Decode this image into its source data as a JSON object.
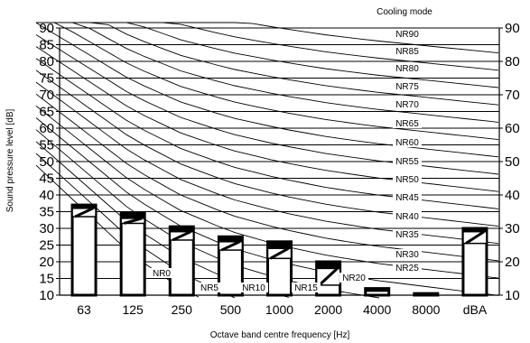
{
  "chart_data": {
    "type": "bar",
    "title": "Cooling mode",
    "xlabel": "Octave band centre frequency [Hz]",
    "ylabel": "Sound pressure level [dB]",
    "ylim": [
      10,
      90
    ],
    "yticks": [
      "10",
      "15",
      "20",
      "25",
      "30",
      "35",
      "40",
      "45",
      "50",
      "55",
      "60",
      "65",
      "70",
      "75",
      "80",
      "85",
      "90"
    ],
    "yticks_right": [
      "10",
      "20",
      "30",
      "40",
      "50",
      "60",
      "70",
      "80",
      "90"
    ],
    "grid": true,
    "categories": [
      "63",
      "125",
      "250",
      "500",
      "1000",
      "2000",
      "4000",
      "8000",
      "dBA"
    ],
    "series": [
      {
        "values": [
          37,
          34.5,
          30.5,
          27.5,
          26,
          20,
          12,
          10.5,
          30
        ]
      },
      {
        "values": [
          36,
          33,
          29,
          26,
          24,
          18,
          11,
          10.2,
          29
        ]
      },
      {
        "values": [
          33.5,
          31.5,
          26.5,
          23.5,
          21,
          13,
          10.5,
          10,
          25.5
        ]
      }
    ],
    "nr_curves": [
      "NR0",
      "NR5",
      "NR10",
      "NR15",
      "NR20",
      "NR25",
      "NR30",
      "NR35",
      "NR40",
      "NR45",
      "NR50",
      "NR55",
      "NR60",
      "NR65",
      "NR70",
      "NR75",
      "NR80",
      "NR85",
      "NR90"
    ]
  },
  "colors": {
    "axis": "#000000",
    "bar_fill": "#ffffff",
    "bar_stroke": "#000000",
    "curve": "#000000"
  }
}
